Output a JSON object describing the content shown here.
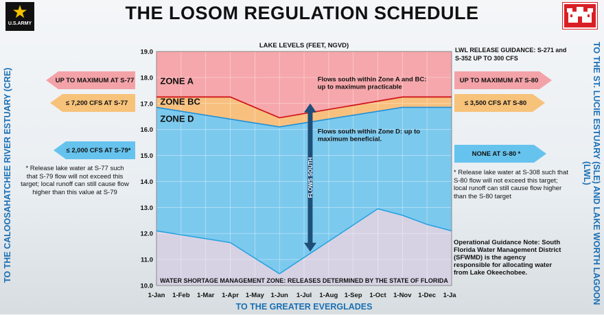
{
  "title": "THE LOSOM REGULATION SCHEDULE",
  "logo_left": {
    "text": "U.S.ARMY",
    "icon": "army-star-icon"
  },
  "logo_right": {
    "icon": "castle-icon",
    "color": "#d91f26"
  },
  "side_left": "TO THE CALOOSAHATCHEE RIVER ESTUARY (CRE)",
  "side_right": "TO THE ST. LUCIE ESTUARY (SLE) AND LAKE WORTH LAGOON (LWL)",
  "left_arrows": [
    {
      "label": "UP TO MAXIMUM AT S-77",
      "color": "#f3a3a8"
    },
    {
      "label": "≤ 7,200 CFS AT S-77",
      "color": "#f7c27a"
    },
    {
      "label": "≤ 2,000 CFS AT S-79*",
      "color": "#66c3ee"
    }
  ],
  "right_arrows": [
    {
      "label": "UP TO MAXIMUM AT S-80",
      "color": "#f3a3a8"
    },
    {
      "label": "≤ 3,500 CFS AT S-80",
      "color": "#f7c27a"
    },
    {
      "label": "NONE AT S-80 *",
      "color": "#66c3ee"
    }
  ],
  "left_note": "* Release lake water at S-77 such that S-79 flow will not exceed this target; local runoff can still cause flow higher than this value at S-79",
  "right_note": "* Release lake water at S-308 such that S-80 flow will not exceed this target; local runoff can still cause flow higher than the S-80 target",
  "lwl_guidance": "LWL RELEASE GUIDANCE: S-271 and S-352 UP TO 300 CFS",
  "operational_guidance": "Operational Guidance Note: South Florida Water Management District (SFWMD) is the agency responsible for allocating water from Lake Okeechobee.",
  "chart_data": {
    "type": "area",
    "title": "LAKE LEVELS (FEET, NGVD)",
    "xlabel": "TO THE GREATER EVERGLADES",
    "x_ticks": [
      "1-Jan",
      "1-Feb",
      "1-Mar",
      "1-Apr",
      "1-May",
      "1-Jun",
      "1-Jul",
      "1-Aug",
      "1-Sep",
      "1-Oct",
      "1-Nov",
      "1-Dec",
      "1-Jan"
    ],
    "y_ticks": [
      "19.0",
      "18.0",
      "17.0",
      "16.0",
      "15.0",
      "14.0",
      "13.0",
      "12.0",
      "11.0",
      "10.0"
    ],
    "ylim": [
      10,
      19
    ],
    "x_months": [
      0,
      1,
      2,
      3,
      4,
      5,
      6,
      7,
      8,
      9,
      10,
      11,
      12
    ],
    "zones": [
      {
        "name": "ZONE A",
        "color": "#f6a7ab"
      },
      {
        "name": "ZONE BC",
        "color": "#f8c07f"
      },
      {
        "name": "ZONE D",
        "color": "#7cc9ee"
      }
    ],
    "series": [
      {
        "name": "ZONE A",
        "x": [
          0,
          3,
          5,
          10,
          12
        ],
        "values": [
          17.25,
          17.25,
          16.45,
          17.25,
          17.25
        ],
        "color": "#d0181f"
      },
      {
        "name": "ZONE BC",
        "x": [
          0,
          5,
          10,
          12
        ],
        "values": [
          16.85,
          16.1,
          16.85,
          16.85
        ],
        "color": "#1f8fd6"
      },
      {
        "name": "WATER SHORTAGE MANAGEMENT ZONE",
        "x": [
          0,
          3,
          5,
          9,
          10,
          11,
          12
        ],
        "values": [
          12.1,
          11.65,
          10.45,
          12.95,
          12.7,
          12.35,
          12.1
        ],
        "color": "#29a3e0"
      }
    ],
    "zone_bottom_color": "#d6d2e4",
    "annotations": {
      "zone_a_text": "Flows south within Zone A and BC: up to maximum practicable",
      "zone_d_text": "Flows south within Zone D: up to maximum beneficial.",
      "flow_arrow": "FLOWS SOUTH",
      "shortage_text": "WATER SHORTAGE MANAGEMENT ZONE: RELEASES DETERMINED BY THE STATE OF FLORIDA"
    }
  }
}
